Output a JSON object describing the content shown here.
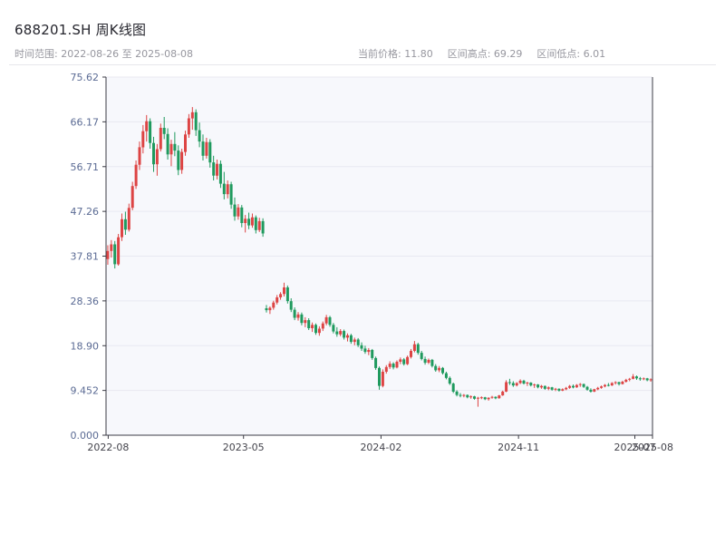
{
  "header": {
    "title": "688201.SH 周K线图",
    "range_label": "时间范围: 2022-08-26 至 2025-08-08",
    "stats": [
      "当前价格: 11.80",
      "区间高点: 69.29",
      "区间低点: 6.01"
    ]
  },
  "chart_data": {
    "type": "candlestick",
    "symbol": "688201.SH",
    "interval": "weekly",
    "title": "688201.SH 周K线图",
    "start_date": "2022-08-26",
    "end_date": "2025-08-08",
    "current_price": 11.8,
    "range_high": 69.29,
    "range_low": 6.01,
    "ylim": [
      0,
      75.62
    ],
    "grid": true,
    "y_ticks": [
      {
        "label": "75.62",
        "value": 75.62
      },
      {
        "label": "66.17",
        "value": 66.17
      },
      {
        "label": "56.71",
        "value": 56.71
      },
      {
        "label": "47.26",
        "value": 47.26
      },
      {
        "label": "37.81",
        "value": 37.81
      },
      {
        "label": "28.36",
        "value": 28.36
      },
      {
        "label": "18.90",
        "value": 18.9
      },
      {
        "label": "9.452",
        "value": 9.452
      },
      {
        "label": "0.000",
        "value": 0.0
      }
    ],
    "x_ticks": [
      {
        "label": "2022-08",
        "pos": 0.004
      },
      {
        "label": "2023-05",
        "pos": 0.2516
      },
      {
        "label": "2024-02",
        "pos": 0.5032
      },
      {
        "label": "2024-11",
        "pos": 0.7548
      },
      {
        "label": "2025-07",
        "pos": 0.9677
      },
      {
        "label": "2025-08",
        "pos": 1.0
      }
    ],
    "colors": {
      "up": "#dd4444",
      "down": "#1f9a5e",
      "plot_bg": "#f7f8fc",
      "grid": "#e8e9f1",
      "axis": "#3b3b45",
      "y_label": "#5b6b94",
      "x_label": "#44444c"
    },
    "candles": [
      [
        37.2,
        40.1,
        36.0,
        38.9
      ],
      [
        38.9,
        41.2,
        37.5,
        40.3
      ],
      [
        40.3,
        41.0,
        35.2,
        36.1
      ],
      [
        36.1,
        42.5,
        35.8,
        41.8
      ],
      [
        41.8,
        46.8,
        41.0,
        45.6
      ],
      [
        45.6,
        47.2,
        42.3,
        43.4
      ],
      [
        43.4,
        48.9,
        43.0,
        48.0
      ],
      [
        48.0,
        53.5,
        47.5,
        52.6
      ],
      [
        52.6,
        58.0,
        52.0,
        57.1
      ],
      [
        57.1,
        62.0,
        56.0,
        60.8
      ],
      [
        60.8,
        65.5,
        59.5,
        64.2
      ],
      [
        64.2,
        67.6,
        62.0,
        66.3
      ],
      [
        66.3,
        66.9,
        60.5,
        61.7
      ],
      [
        61.7,
        63.0,
        55.6,
        57.2
      ],
      [
        57.2,
        61.5,
        54.8,
        60.4
      ],
      [
        60.4,
        65.8,
        59.9,
        64.9
      ],
      [
        64.9,
        67.2,
        62.5,
        63.6
      ],
      [
        63.6,
        64.8,
        58.2,
        59.3
      ],
      [
        59.3,
        62.4,
        56.8,
        61.5
      ],
      [
        61.5,
        64.0,
        58.9,
        60.1
      ],
      [
        60.1,
        61.2,
        54.9,
        56.0
      ],
      [
        56.0,
        60.5,
        55.2,
        59.8
      ],
      [
        59.8,
        64.3,
        59.0,
        63.5
      ],
      [
        63.5,
        67.8,
        62.8,
        66.9
      ],
      [
        66.9,
        69.29,
        64.5,
        68.2
      ],
      [
        68.2,
        68.8,
        63.2,
        64.4
      ],
      [
        64.4,
        66.0,
        60.8,
        62.0
      ],
      [
        62.0,
        63.5,
        58.0,
        59.0
      ],
      [
        59.0,
        62.8,
        58.4,
        61.9
      ],
      [
        61.9,
        62.5,
        56.5,
        57.6
      ],
      [
        57.6,
        59.0,
        53.8,
        54.8
      ],
      [
        54.8,
        58.2,
        54.0,
        57.3
      ],
      [
        57.3,
        58.0,
        52.2,
        53.1
      ],
      [
        53.1,
        55.6,
        49.8,
        50.9
      ],
      [
        50.9,
        53.8,
        50.0,
        53.0
      ],
      [
        53.0,
        53.5,
        47.8,
        48.7
      ],
      [
        48.7,
        50.2,
        45.3,
        46.2
      ],
      [
        46.2,
        48.8,
        45.5,
        48.1
      ],
      [
        48.1,
        48.6,
        43.9,
        44.8
      ],
      [
        44.8,
        46.5,
        42.8,
        45.7
      ],
      [
        45.7,
        47.0,
        43.5,
        44.3
      ],
      [
        44.3,
        46.8,
        43.8,
        46.0
      ],
      [
        46.0,
        46.4,
        42.6,
        43.3
      ],
      [
        43.3,
        45.9,
        42.9,
        45.2
      ],
      [
        45.2,
        45.8,
        41.9,
        42.6
      ],
      [
        26.8,
        27.5,
        25.9,
        26.4
      ],
      [
        26.4,
        27.2,
        25.6,
        26.9
      ],
      [
        26.9,
        28.4,
        26.5,
        28.0
      ],
      [
        28.0,
        29.6,
        27.6,
        29.1
      ],
      [
        29.1,
        30.2,
        28.6,
        29.8
      ],
      [
        29.8,
        32.2,
        29.3,
        31.2
      ],
      [
        31.2,
        31.6,
        27.8,
        28.3
      ],
      [
        28.3,
        28.9,
        26.0,
        26.5
      ],
      [
        26.5,
        27.0,
        24.3,
        24.8
      ],
      [
        24.8,
        26.0,
        24.2,
        25.5
      ],
      [
        25.5,
        25.9,
        23.2,
        23.7
      ],
      [
        23.7,
        24.9,
        22.8,
        24.3
      ],
      [
        24.3,
        24.7,
        22.2,
        22.6
      ],
      [
        22.6,
        23.8,
        21.8,
        23.3
      ],
      [
        23.3,
        23.6,
        21.2,
        21.6
      ],
      [
        21.6,
        23.0,
        21.0,
        22.5
      ],
      [
        22.5,
        24.0,
        22.0,
        23.6
      ],
      [
        23.6,
        25.4,
        23.2,
        24.9
      ],
      [
        24.9,
        25.2,
        22.9,
        23.3
      ],
      [
        23.3,
        23.7,
        21.5,
        21.9
      ],
      [
        21.9,
        22.8,
        20.8,
        21.3
      ],
      [
        21.3,
        22.4,
        20.9,
        22.0
      ],
      [
        22.0,
        22.3,
        20.2,
        20.6
      ],
      [
        20.6,
        21.5,
        19.8,
        21.1
      ],
      [
        21.1,
        21.4,
        19.3,
        19.7
      ],
      [
        19.7,
        20.6,
        19.0,
        20.2
      ],
      [
        20.2,
        20.5,
        18.6,
        19.0
      ],
      [
        19.0,
        19.6,
        17.8,
        18.3
      ],
      [
        18.3,
        18.9,
        17.2,
        17.6
      ],
      [
        17.6,
        18.4,
        16.9,
        18.0
      ],
      [
        18.0,
        18.2,
        15.9,
        16.3
      ],
      [
        16.3,
        16.6,
        13.8,
        14.2
      ],
      [
        14.2,
        14.5,
        9.6,
        10.4
      ],
      [
        10.4,
        13.9,
        10.1,
        13.4
      ],
      [
        13.4,
        14.8,
        13.0,
        14.4
      ],
      [
        14.4,
        15.6,
        14.0,
        15.1
      ],
      [
        15.1,
        15.4,
        13.9,
        14.3
      ],
      [
        14.3,
        15.8,
        14.1,
        15.5
      ],
      [
        15.5,
        16.4,
        15.0,
        16.0
      ],
      [
        16.0,
        16.3,
        14.7,
        15.0
      ],
      [
        15.0,
        16.8,
        14.8,
        16.5
      ],
      [
        16.5,
        18.2,
        16.2,
        17.8
      ],
      [
        17.8,
        19.9,
        17.5,
        19.2
      ],
      [
        19.2,
        19.5,
        17.0,
        17.4
      ],
      [
        17.4,
        17.8,
        15.8,
        16.1
      ],
      [
        16.1,
        16.6,
        14.9,
        15.3
      ],
      [
        15.3,
        16.2,
        15.0,
        15.9
      ],
      [
        15.9,
        16.1,
        14.3,
        14.6
      ],
      [
        14.6,
        15.0,
        13.4,
        13.7
      ],
      [
        13.7,
        14.6,
        13.3,
        14.2
      ],
      [
        14.2,
        14.4,
        12.8,
        13.1
      ],
      [
        13.1,
        13.4,
        11.8,
        12.1
      ],
      [
        12.1,
        12.4,
        10.6,
        10.9
      ],
      [
        10.9,
        11.1,
        8.9,
        9.2
      ],
      [
        9.2,
        9.5,
        8.2,
        8.5
      ],
      [
        8.5,
        8.9,
        8.0,
        8.3
      ],
      [
        8.3,
        8.7,
        8.0,
        8.5
      ],
      [
        8.5,
        8.6,
        7.8,
        8.0
      ],
      [
        8.0,
        8.4,
        7.7,
        8.2
      ],
      [
        8.2,
        8.3,
        7.5,
        7.7
      ],
      [
        7.7,
        8.1,
        6.01,
        7.9
      ],
      [
        7.9,
        8.2,
        7.6,
        8.0
      ],
      [
        8.0,
        8.1,
        7.4,
        7.6
      ],
      [
        7.6,
        8.0,
        7.3,
        7.9
      ],
      [
        7.9,
        8.3,
        7.7,
        8.1
      ],
      [
        8.1,
        8.2,
        7.6,
        7.8
      ],
      [
        7.8,
        8.5,
        7.7,
        8.4
      ],
      [
        8.4,
        9.4,
        8.3,
        9.2
      ],
      [
        9.2,
        11.6,
        9.1,
        11.2
      ],
      [
        11.2,
        11.9,
        10.6,
        11.0
      ],
      [
        11.0,
        11.4,
        10.2,
        10.5
      ],
      [
        10.5,
        11.2,
        10.3,
        11.0
      ],
      [
        11.0,
        11.8,
        10.8,
        11.5
      ],
      [
        11.5,
        11.7,
        10.7,
        10.9
      ],
      [
        10.9,
        11.3,
        10.4,
        11.1
      ],
      [
        11.1,
        11.2,
        10.3,
        10.5
      ],
      [
        10.5,
        10.9,
        10.0,
        10.7
      ],
      [
        10.7,
        10.8,
        9.9,
        10.1
      ],
      [
        10.1,
        10.6,
        9.8,
        10.4
      ],
      [
        10.4,
        10.5,
        9.6,
        9.8
      ],
      [
        9.8,
        10.3,
        9.5,
        10.1
      ],
      [
        10.1,
        10.2,
        9.4,
        9.6
      ],
      [
        9.6,
        10.0,
        9.3,
        9.8
      ],
      [
        9.8,
        9.9,
        9.2,
        9.4
      ],
      [
        9.4,
        9.9,
        9.3,
        9.7
      ],
      [
        9.7,
        10.2,
        9.5,
        10.0
      ],
      [
        10.0,
        10.6,
        9.8,
        10.4
      ],
      [
        10.4,
        10.7,
        9.9,
        10.1
      ],
      [
        10.1,
        10.8,
        10.0,
        10.6
      ],
      [
        10.6,
        11.0,
        10.2,
        10.8
      ],
      [
        10.8,
        10.9,
        10.0,
        10.2
      ],
      [
        10.2,
        10.4,
        9.4,
        9.6
      ],
      [
        9.6,
        9.9,
        9.0,
        9.2
      ],
      [
        9.2,
        9.8,
        9.1,
        9.7
      ],
      [
        9.7,
        10.2,
        9.5,
        10.0
      ],
      [
        10.0,
        10.5,
        9.8,
        10.3
      ],
      [
        10.3,
        10.8,
        10.1,
        10.6
      ],
      [
        10.6,
        11.0,
        10.3,
        10.5
      ],
      [
        10.5,
        11.2,
        10.4,
        11.0
      ],
      [
        11.0,
        11.4,
        10.7,
        11.2
      ],
      [
        11.2,
        11.3,
        10.5,
        10.8
      ],
      [
        10.8,
        11.5,
        10.7,
        11.3
      ],
      [
        11.3,
        11.9,
        11.1,
        11.7
      ],
      [
        11.7,
        12.1,
        11.4,
        11.9
      ],
      [
        11.9,
        12.9,
        11.8,
        12.4
      ],
      [
        12.4,
        12.6,
        11.7,
        12.0
      ],
      [
        12.0,
        12.3,
        11.5,
        11.8
      ],
      [
        11.8,
        12.2,
        11.6,
        12.0
      ],
      [
        12.0,
        12.1,
        11.4,
        11.6
      ],
      [
        11.6,
        12.0,
        11.3,
        11.8
      ]
    ]
  }
}
